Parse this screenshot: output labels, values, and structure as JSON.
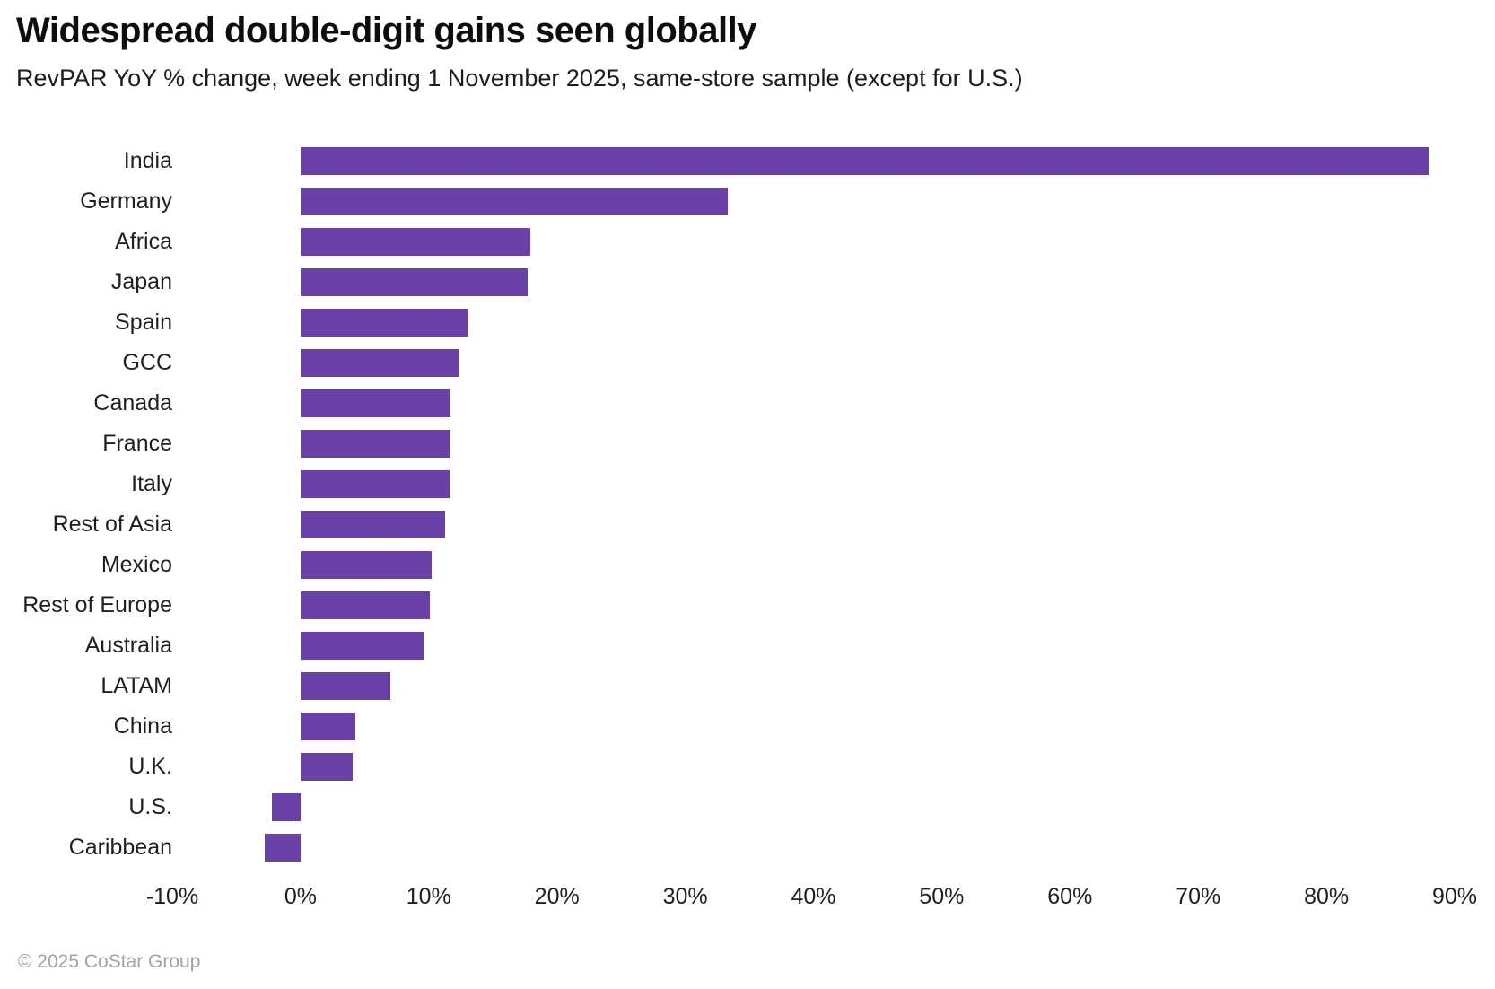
{
  "header": {
    "title": "Widespread double-digit gains seen globally",
    "subtitle": "RevPAR YoY % change, week ending 1 November 2025, same-store sample (except for U.S.)"
  },
  "footer": {
    "copyright": "© 2025 CoStar Group"
  },
  "colors": {
    "bar": "#6a41a6",
    "title_text": "#0d0d0d",
    "body_text": "#1f1f1f",
    "footer_text": "#a3a3a3",
    "background": "#ffffff"
  },
  "chart_data": {
    "type": "bar",
    "orientation": "horizontal",
    "title": "Widespread double-digit gains seen globally",
    "subtitle": "RevPAR YoY % change, week ending 1 November 2025, same-store sample (except for U.S.)",
    "xlabel": "RevPAR YoY % change",
    "ylabel": "",
    "xlim": [
      -10,
      90
    ],
    "x_ticks": [
      "-10%",
      "0%",
      "10%",
      "20%",
      "30%",
      "40%",
      "50%",
      "60%",
      "70%",
      "80%",
      "90%"
    ],
    "grid": false,
    "legend": false,
    "categories": [
      "India",
      "Germany",
      "Africa",
      "Japan",
      "Spain",
      "GCC",
      "Canada",
      "France",
      "Italy",
      "Rest of Asia",
      "Mexico",
      "Rest of Europe",
      "Australia",
      "LATAM",
      "China",
      "U.K.",
      "U.S.",
      "Caribbean"
    ],
    "values": [
      88.0,
      33.3,
      17.9,
      17.7,
      13.0,
      12.4,
      11.7,
      11.7,
      11.6,
      11.3,
      10.2,
      10.1,
      9.6,
      7.0,
      4.3,
      4.1,
      -2.2,
      -2.8
    ]
  }
}
